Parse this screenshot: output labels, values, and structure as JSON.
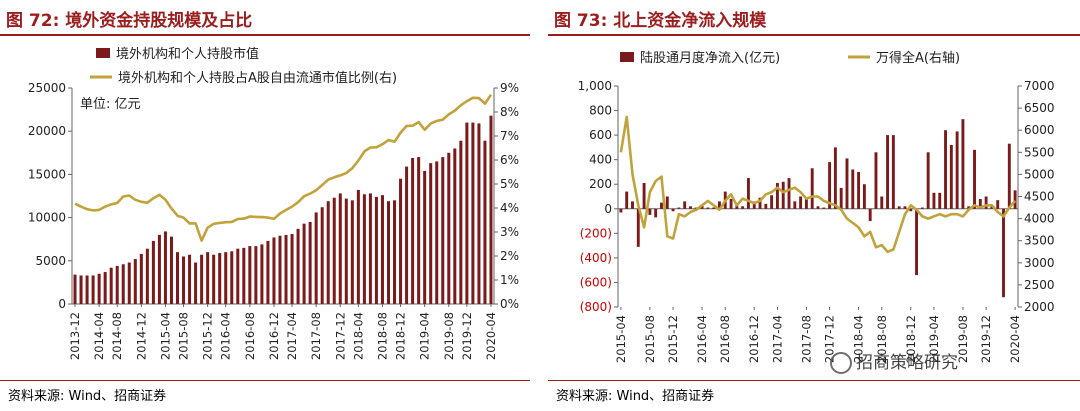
{
  "left": {
    "title": "图 72:  境外资金持股规模及占比",
    "source": "资料来源:  Wind、招商证券",
    "unit_label": "单位:  亿元",
    "chart_data": {
      "type": "bar",
      "legend": [
        "境外机构和个人持股市值",
        "境外机构和个人持股占A股自由流通市值比例(右)"
      ],
      "legend_placement": "top-left",
      "y_ticks": [
        "0",
        "5000",
        "10000",
        "15000",
        "20000",
        "25000"
      ],
      "y_range": [
        0,
        25000
      ],
      "y2_ticks": [
        "0%",
        "1%",
        "2%",
        "3%",
        "4%",
        "5%",
        "6%",
        "7%",
        "8%",
        "9%"
      ],
      "y2_range": [
        0,
        0.09
      ],
      "x_ticks": [
        "2013-12",
        "2014-04",
        "2014-08",
        "2014-12",
        "2015-04",
        "2015-08",
        "2015-12",
        "2016-04",
        "2016-08",
        "2016-12",
        "2017-04",
        "2017-08",
        "2017-12",
        "2018-04",
        "2018-08",
        "2018-12",
        "2019-04",
        "2019-08",
        "2019-12",
        "2020-04"
      ],
      "bar_values": [
        3400,
        3300,
        3300,
        3300,
        3500,
        3700,
        4200,
        4400,
        4600,
        4800,
        5200,
        5800,
        6400,
        7300,
        8000,
        8400,
        7800,
        6000,
        5500,
        5700,
        4800,
        5700,
        6000,
        5700,
        5900,
        6000,
        6100,
        6400,
        6500,
        6700,
        6700,
        6900,
        7300,
        7700,
        7900,
        8000,
        8100,
        8700,
        9300,
        9500,
        10600,
        11200,
        11900,
        12300,
        12800,
        12200,
        12000,
        13200,
        12700,
        12800,
        12400,
        12600,
        11900,
        12000,
        14500,
        15900,
        16900,
        17000,
        15400,
        16300,
        16500,
        17000,
        17500,
        18000,
        18900,
        21000,
        21000,
        20900,
        18900,
        21800
      ],
      "line_values": [
        0.0418,
        0.0406,
        0.0395,
        0.039,
        0.0392,
        0.0406,
        0.0415,
        0.0421,
        0.0448,
        0.0452,
        0.0434,
        0.0426,
        0.0422,
        0.0441,
        0.0455,
        0.0435,
        0.0398,
        0.0368,
        0.036,
        0.0336,
        0.0336,
        0.0264,
        0.0318,
        0.0334,
        0.0338,
        0.0341,
        0.0342,
        0.0354,
        0.0356,
        0.0364,
        0.0363,
        0.0362,
        0.036,
        0.0355,
        0.0377,
        0.0392,
        0.0406,
        0.0424,
        0.0449,
        0.046,
        0.0474,
        0.0496,
        0.0518,
        0.0528,
        0.0536,
        0.0546,
        0.0566,
        0.0598,
        0.0636,
        0.0652,
        0.0653,
        0.0666,
        0.0683,
        0.0676,
        0.0714,
        0.0742,
        0.0743,
        0.0758,
        0.0726,
        0.0752,
        0.0763,
        0.0768,
        0.079,
        0.0806,
        0.0828,
        0.0845,
        0.0859,
        0.0858,
        0.0835,
        0.0872
      ]
    }
  },
  "right": {
    "title": "图 73:  北上资金净流入规模",
    "source": "资料来源:  Wind、招商证券",
    "chart_data": {
      "type": "bar",
      "legend": [
        "陆股通月度净流入(亿元)",
        "万得全A(右轴)"
      ],
      "legend_placement": "top",
      "y_ticks": [
        "(800)",
        "(600)",
        "(400)",
        "(200)",
        "0",
        "200",
        "400",
        "600",
        "800",
        "1,000"
      ],
      "y_range": [
        -800,
        1000
      ],
      "y2_ticks": [
        "2000",
        "2500",
        "3000",
        "3500",
        "4000",
        "4500",
        "5000",
        "5500",
        "6000",
        "6500",
        "7000"
      ],
      "y2_range": [
        2000,
        7000
      ],
      "x_ticks": [
        "2015-04",
        "2015-08",
        "2015-12",
        "2016-04",
        "2016-08",
        "2016-12",
        "2017-04",
        "2017-08",
        "2017-12",
        "2018-04",
        "2018-08",
        "2018-12",
        "2019-04",
        "2019-08",
        "2019-12",
        "2020-04"
      ],
      "bar_values": [
        -30,
        140,
        60,
        -310,
        210,
        -50,
        -70,
        50,
        100,
        -20,
        10,
        60,
        20,
        10,
        30,
        10,
        10,
        60,
        140,
        80,
        30,
        20,
        250,
        60,
        90,
        40,
        110,
        210,
        220,
        250,
        60,
        100,
        80,
        330,
        20,
        10,
        380,
        500,
        170,
        410,
        320,
        300,
        200,
        -100,
        460,
        100,
        600,
        600,
        20,
        20,
        -20,
        -540,
        10,
        460,
        130,
        130,
        640,
        520,
        630,
        730,
        20,
        480,
        80,
        100,
        20,
        70,
        -720,
        530,
        150
      ],
      "line_values": [
        5500,
        6300,
        5000,
        4300,
        3800,
        4600,
        4850,
        4950,
        3600,
        3550,
        4100,
        4050,
        4150,
        4200,
        4300,
        4400,
        4300,
        4200,
        4400,
        4550,
        4300,
        4450,
        4400,
        4350,
        4400,
        4550,
        4600,
        4700,
        4600,
        4650,
        4700,
        4600,
        4450,
        4500,
        4500,
        4400,
        4350,
        4300,
        4200,
        4000,
        3900,
        3800,
        3600,
        3700,
        3350,
        3400,
        3250,
        3300,
        3700,
        4100,
        4300,
        4200,
        4050,
        4000,
        4050,
        4100,
        4050,
        4100,
        4100,
        4050,
        4200,
        4300,
        4250,
        4300,
        4300,
        4150,
        4050,
        4250,
        4400
      ]
    }
  },
  "watermark": "招商策略研究",
  "colors": {
    "bar": "#7b1a1a",
    "line": "#c2a23a",
    "title": "#9b1d1d",
    "negative": "#cc0000"
  }
}
